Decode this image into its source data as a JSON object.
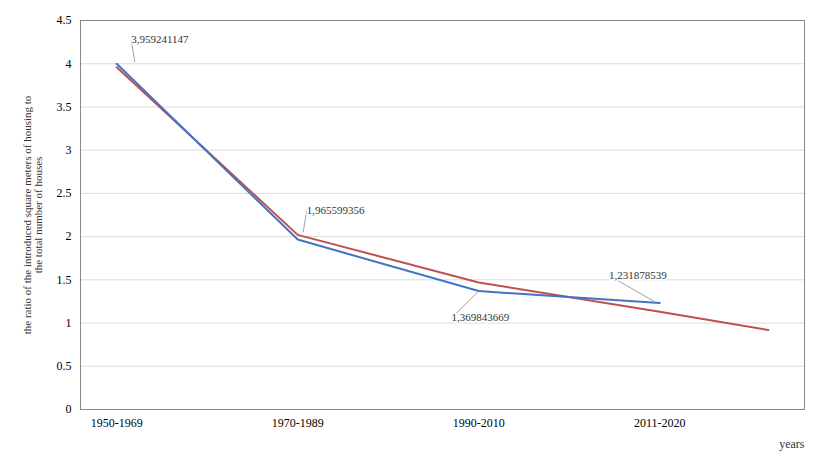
{
  "chart_data": {
    "type": "line",
    "x": [
      0,
      1,
      2,
      3,
      3.6
    ],
    "series": [
      {
        "color": "#C0504D",
        "values": [
          3.959241147,
          2.02,
          1.47,
          1.13,
          0.92
        ]
      },
      {
        "color": "#4472C4",
        "values": [
          4.0,
          1.965599356,
          1.369843669,
          1.231878539,
          null
        ]
      }
    ],
    "xlim": [
      -0.2,
      3.8
    ],
    "xticks": [
      {
        "value": 0,
        "label": "1950-1969"
      },
      {
        "value": 1,
        "label": "1970-1989"
      },
      {
        "value": 2,
        "label": "1990-2010"
      },
      {
        "value": 3,
        "label": "2011-2020"
      }
    ],
    "ylim": [
      0,
      4.5
    ],
    "yticks": [
      0,
      0.5,
      1,
      1.5,
      2,
      2.5,
      3,
      3.5,
      4,
      4.5
    ],
    "ylabel": "the ratio of the introduced square meters of housing to\nthe total number of houses",
    "xlabel": "years",
    "grid": true,
    "annotations": [
      {
        "text": "3,959241147",
        "x": 0.1,
        "y": 4.02,
        "text_x": 0.08,
        "text_y": 4.28
      },
      {
        "text": "1,965599356",
        "x": 1.03,
        "y": 2.05,
        "text_x": 1.05,
        "text_y": 2.3
      },
      {
        "text": "1,369843669",
        "x": 2.0,
        "y": 1.37,
        "text_x": 1.85,
        "text_y": 1.06
      },
      {
        "text": "1,231878539",
        "x": 2.97,
        "y": 1.25,
        "text_x": 2.72,
        "text_y": 1.55
      }
    ]
  }
}
